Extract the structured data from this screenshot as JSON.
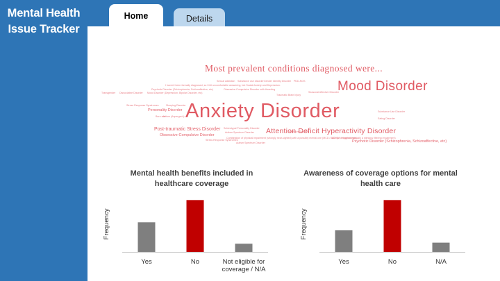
{
  "app": {
    "title_line1": "Mental Health",
    "title_line2": "Issue Tracker"
  },
  "tabs": [
    {
      "label": "Home",
      "active": true
    },
    {
      "label": "Details",
      "active": false
    }
  ],
  "wordcloud": {
    "title": "Most prevalent conditions diagnosed were...",
    "big_words": [
      "Anxiety Disorder",
      "Mood Disorder",
      "Attention Deficit Hyperactivity Disorder",
      "Post-traumatic Stress Disorder",
      "Personality Disorder",
      "Obsessive-Compulsive Disorder",
      "Psychotic Disorder (Schizophrenia, Schizoaffective, etc)"
    ],
    "small_words": [
      "Sexual addiction",
      "Substance use disorder",
      "Gender Identity Disorder",
      "PDD-NOS",
      "I haven't been formally diagnosed, so I felt uncomfortable answering, but Social Anxiety and Depression.",
      "Psychotic Disorder (Schizophrenia, Schizoaffective, etc)",
      "Obsessive-Compulsive Disorder with Hoarding",
      "Seasonal Affective Disorder",
      "Transgender",
      "Dissociative Disorder",
      "Mood Disorder (Depression, Bipolar Disorder, etc)",
      "Traumatic Brain Injury",
      "Stress Response Syndromes",
      "Sleeping Disorder",
      "Burn out",
      "Autism (Asperger's)",
      "Substance Use Disorder",
      "Eating Disorder",
      "Schizotypal Personality Disorder",
      "Autism Spectrum Disorder",
      "Combination of physical impairment (strongly near-sighted) with a possibly mental one (MCD / \"ADHD\", though its actually a stimulus filtering impairment)",
      "Addictive Disorder",
      "Stress Response Syndromes",
      "Autism Spectrum Disorder",
      "ADD (w/o Hyperactivity)"
    ]
  },
  "charts": [
    {
      "title_line1": "Mental health benefits included in",
      "title_line2": "healthcare coverage",
      "ylabel": "Frequency",
      "categories": [
        "Yes",
        "No",
        "Not eligible for|coverage / N/A"
      ],
      "values": [
        40,
        70,
        11
      ],
      "ymax": 75,
      "colors": [
        "#7f7f7f",
        "#c00000",
        "#7f7f7f"
      ]
    },
    {
      "title_line1": "Awareness of coverage options for mental",
      "title_line2": "health care",
      "ylabel": "Frequency",
      "categories": [
        "Yes",
        "No",
        "N/A"
      ],
      "values": [
        35,
        84,
        15
      ],
      "ymax": 90,
      "colors": [
        "#7f7f7f",
        "#c00000",
        "#7f7f7f"
      ]
    }
  ],
  "chart_data": [
    {
      "type": "bar",
      "title": "Mental health benefits included in healthcare coverage",
      "xlabel": "",
      "ylabel": "Frequency",
      "categories": [
        "Yes",
        "No",
        "Not eligible for coverage / N/A"
      ],
      "values": [
        40,
        70,
        11
      ],
      "ylim": [
        0,
        75
      ],
      "grid": false
    },
    {
      "type": "bar",
      "title": "Awareness of coverage options for mental health care",
      "xlabel": "",
      "ylabel": "Frequency",
      "categories": [
        "Yes",
        "No",
        "N/A"
      ],
      "values": [
        35,
        84,
        15
      ],
      "ylim": [
        0,
        90
      ],
      "grid": false
    }
  ]
}
